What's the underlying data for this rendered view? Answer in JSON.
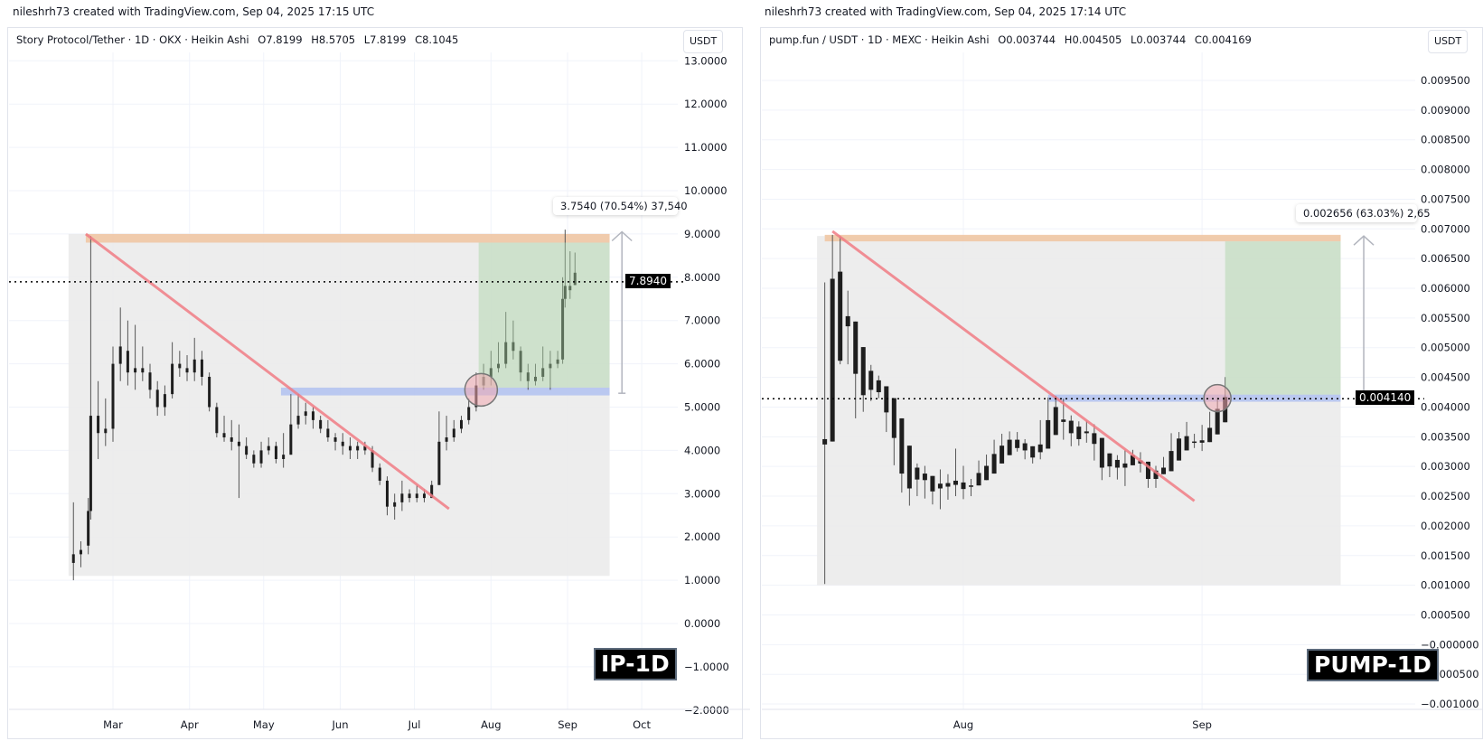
{
  "panels": [
    {
      "credit": "nileshrh73 created with TradingView.com, Sep 04, 2025 17:15 UTC",
      "legend": {
        "symbol": "Story Protocol/Tether · 1D · OKX · Heikin Ashi",
        "open": "O7.8199",
        "high": "H8.5705",
        "low": "L7.8199",
        "close": "C8.1045"
      },
      "currency": "USDT",
      "last_price_label": "7.8940",
      "measure_label": "3.7540 (70.54%) 37,540",
      "badge": "IP-1D"
    },
    {
      "credit": "nileshrh73 created with TradingView.com, Sep 04, 2025 17:14 UTC",
      "legend": {
        "symbol": "pump.fun / USDT · 1D · MEXC · Heikin Ashi",
        "open": "O0.003744",
        "high": "H0.004505",
        "low": "L0.003744",
        "close": "C0.004169"
      },
      "currency": "USDT",
      "last_price_label": "0.004140",
      "measure_label": "0.002656 (63.03%) 2,65",
      "badge": "PUMP-1D"
    }
  ],
  "colors": {
    "candle": "#1e1e1e",
    "range_box": "#ebebeb",
    "resistance": "#f0c4a0",
    "support": "#b4c3f0",
    "target_zone": "#a9d3a3",
    "trendline": "#f07b84",
    "breakout_circle": "#f0a8b0",
    "arrow": "#b2b5be",
    "grid": "#f0f3fa"
  },
  "chart_data": [
    {
      "type": "candlestick",
      "style": "Heikin Ashi",
      "symbol": "IP",
      "year": 2025,
      "y_ticks": [
        "13.0000",
        "12.0000",
        "11.0000",
        "10.0000",
        "9.0000",
        "8.0000",
        "7.0000",
        "6.0000",
        "5.0000",
        "4.0000",
        "3.0000",
        "2.0000",
        "1.0000",
        "0.0000",
        "−1.0000",
        "−2.0000"
      ],
      "y_tick_values": [
        13,
        12,
        11,
        10,
        9,
        8,
        7,
        6,
        5,
        4,
        3,
        2,
        1,
        0,
        -1,
        -2
      ],
      "x_ticks": [
        {
          "label": "Mar",
          "date": "03-01"
        },
        {
          "label": "Apr",
          "date": "04-01"
        },
        {
          "label": "May",
          "date": "05-01"
        },
        {
          "label": "Jun",
          "date": "06-01"
        },
        {
          "label": "Jul",
          "date": "07-01"
        },
        {
          "label": "Aug",
          "date": "08-01"
        },
        {
          "label": "Sep",
          "date": "09-01"
        },
        {
          "label": "Oct",
          "date": "10-01"
        }
      ],
      "last_price": 7.894,
      "grid": true,
      "candles": [
        [
          "02-13",
          1.4,
          2.8,
          1.0,
          1.6
        ],
        [
          "02-16",
          1.6,
          1.9,
          1.3,
          1.7
        ],
        [
          "02-19",
          1.8,
          2.9,
          1.6,
          2.6
        ],
        [
          "02-20",
          2.6,
          8.95,
          2.4,
          4.8
        ],
        [
          "02-23",
          4.8,
          5.6,
          3.8,
          4.4
        ],
        [
          "02-26",
          4.4,
          5.2,
          4.1,
          4.5
        ],
        [
          "03-01",
          4.5,
          6.4,
          4.2,
          6.0
        ],
        [
          "03-04",
          6.0,
          7.3,
          5.6,
          6.4
        ],
        [
          "03-07",
          6.3,
          7.0,
          5.5,
          5.8
        ],
        [
          "03-10",
          5.8,
          6.9,
          5.4,
          5.9
        ],
        [
          "03-13",
          5.9,
          6.4,
          5.6,
          5.8
        ],
        [
          "03-16",
          5.8,
          6.0,
          5.2,
          5.4
        ],
        [
          "03-19",
          5.4,
          5.6,
          4.8,
          5.0
        ],
        [
          "03-22",
          5.0,
          5.5,
          4.8,
          5.3
        ],
        [
          "03-25",
          5.3,
          6.5,
          5.2,
          6.0
        ],
        [
          "03-28",
          6.0,
          6.3,
          5.7,
          5.9
        ],
        [
          "03-31",
          5.9,
          6.2,
          5.6,
          5.8
        ],
        [
          "04-03",
          5.8,
          6.6,
          5.6,
          6.1
        ],
        [
          "04-06",
          6.1,
          6.3,
          5.5,
          5.7
        ],
        [
          "04-09",
          5.7,
          5.8,
          4.9,
          5.0
        ],
        [
          "04-12",
          5.0,
          5.1,
          4.3,
          4.4
        ],
        [
          "04-15",
          4.4,
          4.8,
          4.2,
          4.3
        ],
        [
          "04-18",
          4.3,
          4.7,
          4.0,
          4.2
        ],
        [
          "04-21",
          4.2,
          4.6,
          2.9,
          4.1
        ],
        [
          "04-24",
          4.1,
          4.3,
          3.8,
          3.9
        ],
        [
          "04-27",
          3.9,
          4.0,
          3.6,
          3.7
        ],
        [
          "04-30",
          3.7,
          4.2,
          3.6,
          4.0
        ],
        [
          "05-03",
          4.0,
          4.3,
          3.9,
          4.1
        ],
        [
          "05-06",
          4.1,
          4.2,
          3.7,
          3.8
        ],
        [
          "05-09",
          3.8,
          4.4,
          3.6,
          3.9
        ],
        [
          "05-12",
          3.9,
          5.3,
          3.9,
          4.6
        ],
        [
          "05-15",
          4.6,
          5.3,
          4.5,
          4.8
        ],
        [
          "05-18",
          4.8,
          5.1,
          4.6,
          4.9
        ],
        [
          "05-21",
          4.9,
          5.0,
          4.5,
          4.7
        ],
        [
          "05-24",
          4.7,
          4.8,
          4.4,
          4.5
        ],
        [
          "05-27",
          4.5,
          4.7,
          4.2,
          4.3
        ],
        [
          "05-30",
          4.3,
          4.4,
          4.0,
          4.2
        ],
        [
          "06-02",
          4.2,
          4.4,
          3.9,
          4.1
        ],
        [
          "06-05",
          4.1,
          4.3,
          3.8,
          4.0
        ],
        [
          "06-08",
          4.0,
          4.2,
          3.8,
          4.1
        ],
        [
          "06-11",
          4.1,
          4.2,
          3.9,
          4.0
        ],
        [
          "06-14",
          4.0,
          4.1,
          3.5,
          3.6
        ],
        [
          "06-17",
          3.6,
          3.7,
          3.2,
          3.3
        ],
        [
          "06-20",
          3.3,
          3.4,
          2.5,
          2.7
        ],
        [
          "06-23",
          2.7,
          3.0,
          2.4,
          2.8
        ],
        [
          "06-26",
          2.8,
          3.3,
          2.6,
          3.0
        ],
        [
          "06-29",
          3.0,
          3.1,
          2.8,
          2.9
        ],
        [
          "07-02",
          2.9,
          3.2,
          2.8,
          3.0
        ],
        [
          "07-05",
          3.0,
          3.1,
          2.8,
          2.9
        ],
        [
          "07-08",
          2.9,
          3.3,
          2.9,
          3.2
        ],
        [
          "07-11",
          3.2,
          4.9,
          3.2,
          4.2
        ],
        [
          "07-14",
          4.2,
          4.8,
          4.0,
          4.3
        ],
        [
          "07-17",
          4.3,
          4.7,
          4.2,
          4.5
        ],
        [
          "07-20",
          4.5,
          4.8,
          4.4,
          4.7
        ],
        [
          "07-23",
          4.7,
          5.2,
          4.6,
          5.0
        ],
        [
          "07-26",
          5.0,
          5.8,
          4.9,
          5.5
        ],
        [
          "07-29",
          5.5,
          6.0,
          5.4,
          5.7
        ],
        [
          "08-01",
          5.7,
          6.3,
          5.5,
          5.9
        ],
        [
          "08-04",
          5.9,
          6.5,
          5.8,
          6.0
        ],
        [
          "08-07",
          6.0,
          7.2,
          5.9,
          6.5
        ],
        [
          "08-10",
          6.5,
          7.0,
          6.1,
          6.3
        ],
        [
          "08-13",
          6.3,
          6.4,
          5.6,
          5.8
        ],
        [
          "08-16",
          5.8,
          6.0,
          5.4,
          5.6
        ],
        [
          "08-19",
          5.6,
          6.0,
          5.5,
          5.7
        ],
        [
          "08-22",
          5.7,
          6.4,
          5.6,
          5.9
        ],
        [
          "08-25",
          5.9,
          6.3,
          5.4,
          6.0
        ],
        [
          "08-28",
          6.0,
          6.3,
          5.9,
          6.1
        ],
        [
          "08-30",
          6.1,
          8.0,
          6.0,
          7.5
        ],
        [
          "08-31",
          7.5,
          9.1,
          7.3,
          7.8
        ],
        [
          "09-02",
          7.8,
          8.6,
          7.5,
          7.7
        ],
        [
          "09-04",
          7.8199,
          8.5705,
          7.8199,
          8.1045
        ]
      ],
      "annotations": {
        "range_box": {
          "from": "02-11",
          "to": "09-18",
          "top": 9.0,
          "bottom": 1.1
        },
        "resistance_band": {
          "from": "02-18",
          "to": "09-18",
          "top": 9.0,
          "bottom": 8.8
        },
        "support_band": {
          "from": "05-08",
          "to": "09-18",
          "top": 5.45,
          "bottom": 5.27
        },
        "target_zone": {
          "from": "07-27",
          "to": "09-18",
          "top": 8.8,
          "bottom": 5.45
        },
        "trendline": {
          "from": [
            "02-18",
            9.0
          ],
          "to": [
            "07-15",
            2.65
          ]
        },
        "breakout_circle": {
          "date": "07-28",
          "value": 5.4
        },
        "measure_arrow": {
          "date": "09-23",
          "from": 5.32,
          "to": 9.05
        }
      }
    },
    {
      "type": "candlestick",
      "style": "Heikin Ashi",
      "symbol": "PUMP",
      "year": 2025,
      "y_ticks": [
        "0.009500",
        "0.009000",
        "0.008500",
        "0.008000",
        "0.007500",
        "0.007000",
        "0.006500",
        "0.006000",
        "0.005500",
        "0.005000",
        "0.004500",
        "0.004000",
        "0.003500",
        "0.003000",
        "0.002500",
        "0.002000",
        "0.001500",
        "0.001000",
        "0.000500",
        "−0.000000",
        "−0.000500",
        "−0.001000"
      ],
      "y_tick_values": [
        0.0095,
        0.009,
        0.0085,
        0.008,
        0.0075,
        0.007,
        0.0065,
        0.006,
        0.0055,
        0.005,
        0.0045,
        0.004,
        0.0035,
        0.003,
        0.0025,
        0.002,
        0.0015,
        0.001,
        0.0005,
        0,
        -0.0005,
        -0.001
      ],
      "x_ticks": [
        {
          "label": "Aug",
          "date": "08-01"
        },
        {
          "label": "Sep",
          "date": "09-01"
        }
      ],
      "last_price": 0.00414,
      "grid": true,
      "candles": [
        [
          "07-14",
          0.00346,
          0.0061,
          0.00102,
          0.00337
        ],
        [
          "07-15",
          0.00342,
          0.0069,
          0.00342,
          0.00616
        ],
        [
          "07-16",
          0.00628,
          0.00687,
          0.00472,
          0.00478
        ],
        [
          "07-17",
          0.00553,
          0.00596,
          0.00472,
          0.00536
        ],
        [
          "07-18",
          0.00544,
          0.00544,
          0.00381,
          0.00456
        ],
        [
          "07-19",
          0.00501,
          0.00501,
          0.00392,
          0.0042
        ],
        [
          "07-20",
          0.00461,
          0.00471,
          0.0041,
          0.00429
        ],
        [
          "07-21",
          0.00445,
          0.00453,
          0.00415,
          0.00425
        ],
        [
          "07-22",
          0.00435,
          0.00435,
          0.00358,
          0.00391
        ],
        [
          "07-23",
          0.00415,
          0.00415,
          0.00302,
          0.00348
        ],
        [
          "07-24",
          0.00381,
          0.00381,
          0.00256,
          0.00288
        ],
        [
          "07-25",
          0.00335,
          0.00335,
          0.00234,
          0.00263
        ],
        [
          "07-26",
          0.00298,
          0.00305,
          0.0025,
          0.00278
        ],
        [
          "07-27",
          0.00288,
          0.00301,
          0.00246,
          0.00277
        ],
        [
          "07-28",
          0.00284,
          0.00284,
          0.00236,
          0.00258
        ],
        [
          "07-29",
          0.00271,
          0.00295,
          0.00228,
          0.00263
        ],
        [
          "07-30",
          0.00266,
          0.00287,
          0.00244,
          0.00272
        ],
        [
          "07-31",
          0.00269,
          0.0033,
          0.0025,
          0.00276
        ],
        [
          "08-01",
          0.00273,
          0.00301,
          0.00245,
          0.00262
        ],
        [
          "08-02",
          0.00268,
          0.00279,
          0.0025,
          0.00266
        ],
        [
          "08-03",
          0.00268,
          0.0031,
          0.00268,
          0.00289
        ],
        [
          "08-04",
          0.00277,
          0.0032,
          0.00277,
          0.00301
        ],
        [
          "08-05",
          0.00288,
          0.00345,
          0.00288,
          0.00321
        ],
        [
          "08-06",
          0.00305,
          0.00355,
          0.00305,
          0.00335
        ],
        [
          "08-07",
          0.00319,
          0.00359,
          0.00319,
          0.00345
        ],
        [
          "08-08",
          0.00345,
          0.00358,
          0.00325,
          0.00331
        ],
        [
          "08-09",
          0.00339,
          0.00346,
          0.00312,
          0.00327
        ],
        [
          "08-10",
          0.00334,
          0.00334,
          0.00305,
          0.00315
        ],
        [
          "08-11",
          0.00324,
          0.00378,
          0.00312,
          0.00337
        ],
        [
          "08-12",
          0.0033,
          0.00416,
          0.0033,
          0.00378
        ],
        [
          "08-13",
          0.00353,
          0.00419,
          0.00353,
          0.004
        ],
        [
          "08-14",
          0.00379,
          0.00414,
          0.00345,
          0.00375
        ],
        [
          "08-15",
          0.00377,
          0.00386,
          0.00334,
          0.00356
        ],
        [
          "08-16",
          0.00367,
          0.00376,
          0.00335,
          0.00346
        ],
        [
          "08-17",
          0.00359,
          0.00377,
          0.0034,
          0.00356
        ],
        [
          "08-18",
          0.00356,
          0.00371,
          0.0031,
          0.00338
        ],
        [
          "08-19",
          0.00348,
          0.00348,
          0.00277,
          0.00298
        ],
        [
          "08-20",
          0.00322,
          0.00322,
          0.00282,
          0.003
        ],
        [
          "08-21",
          0.00311,
          0.00319,
          0.00278,
          0.00298
        ],
        [
          "08-22",
          0.00305,
          0.00328,
          0.00267,
          0.00298
        ],
        [
          "08-23",
          0.00302,
          0.00328,
          0.00302,
          0.00319
        ],
        [
          "08-24",
          0.0031,
          0.00324,
          0.0029,
          0.00305
        ],
        [
          "08-25",
          0.00308,
          0.00308,
          0.00264,
          0.00279
        ],
        [
          "08-26",
          0.00279,
          0.00301,
          0.00264,
          0.00293
        ],
        [
          "08-27",
          0.00287,
          0.00316,
          0.00287,
          0.00298
        ],
        [
          "08-28",
          0.00292,
          0.00356,
          0.00292,
          0.00326
        ],
        [
          "08-29",
          0.0031,
          0.00358,
          0.0031,
          0.00347
        ],
        [
          "08-30",
          0.00327,
          0.00375,
          0.00327,
          0.00351
        ],
        [
          "08-31",
          0.0034,
          0.00355,
          0.00331,
          0.00342
        ],
        [
          "09-01",
          0.0034,
          0.0037,
          0.00326,
          0.00344
        ],
        [
          "09-02",
          0.00341,
          0.00392,
          0.00341,
          0.00365
        ],
        [
          "09-03",
          0.00354,
          0.00416,
          0.00354,
          0.00397
        ],
        [
          "09-04",
          0.003744,
          0.004505,
          0.003744,
          0.004169
        ]
      ],
      "annotations": {
        "range_box": {
          "from": "07-13",
          "to": "09-19",
          "top": 0.00688,
          "bottom": 0.001
        },
        "resistance_band": {
          "from": "07-14",
          "to": "09-19",
          "top": 0.0069,
          "bottom": 0.00679
        },
        "support_band": {
          "from": "08-12",
          "to": "09-19",
          "top": 0.00421,
          "bottom": 0.00409
        },
        "target_zone": {
          "from": "09-04",
          "to": "09-19",
          "top": 0.00679,
          "bottom": 0.00421
        },
        "trendline": {
          "from": [
            "07-15",
            0.00696
          ],
          "to": [
            "08-31",
            0.00242
          ]
        },
        "breakout_circle": {
          "date": "09-03",
          "value": 0.00415
        },
        "measure_arrow": {
          "date": "09-22",
          "from": 0.00421,
          "to": 0.00688
        }
      }
    }
  ]
}
